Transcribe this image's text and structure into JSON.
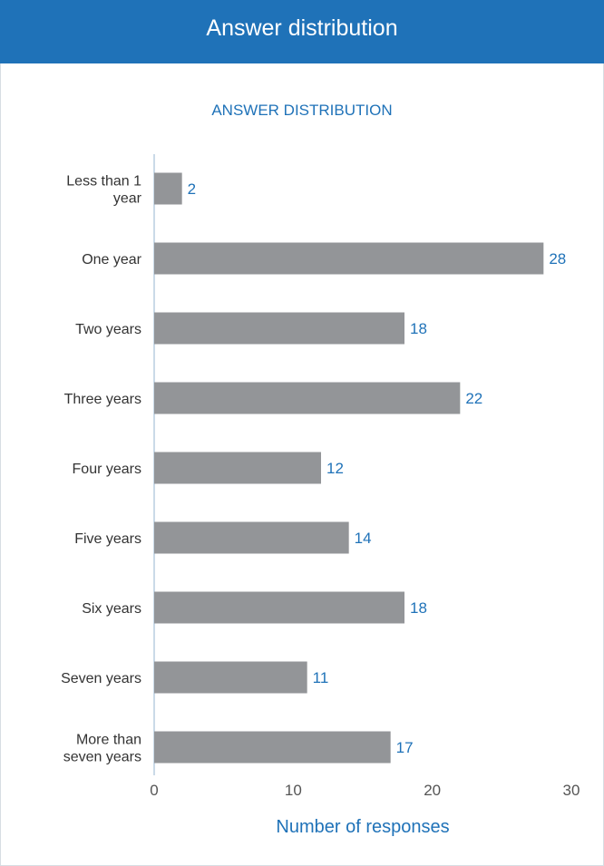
{
  "header": {
    "title": "Answer distribution"
  },
  "chart_data": {
    "type": "bar",
    "orientation": "horizontal",
    "title": "ANSWER DISTRIBUTION",
    "categories": [
      "Less than 1 year",
      "One year",
      "Two years",
      "Three years",
      "Four years",
      "Five years",
      "Six years",
      "Seven years",
      "More than seven years"
    ],
    "category_lines": [
      [
        "Less than 1",
        "year"
      ],
      [
        "One year"
      ],
      [
        "Two years"
      ],
      [
        "Three years"
      ],
      [
        "Four years"
      ],
      [
        "Five years"
      ],
      [
        "Six years"
      ],
      [
        "Seven years"
      ],
      [
        "More than",
        "seven years"
      ]
    ],
    "values": [
      2,
      28,
      18,
      22,
      12,
      14,
      18,
      11,
      17
    ],
    "xlabel": "Number of responses",
    "ylabel": "",
    "xlim": [
      0,
      30
    ],
    "xticks": [
      0,
      10,
      20,
      30
    ],
    "grid": false,
    "legend": "none",
    "colors": {
      "bar": "#939598",
      "value_label": "#1f72b8",
      "axis": "#b8cde0"
    }
  }
}
